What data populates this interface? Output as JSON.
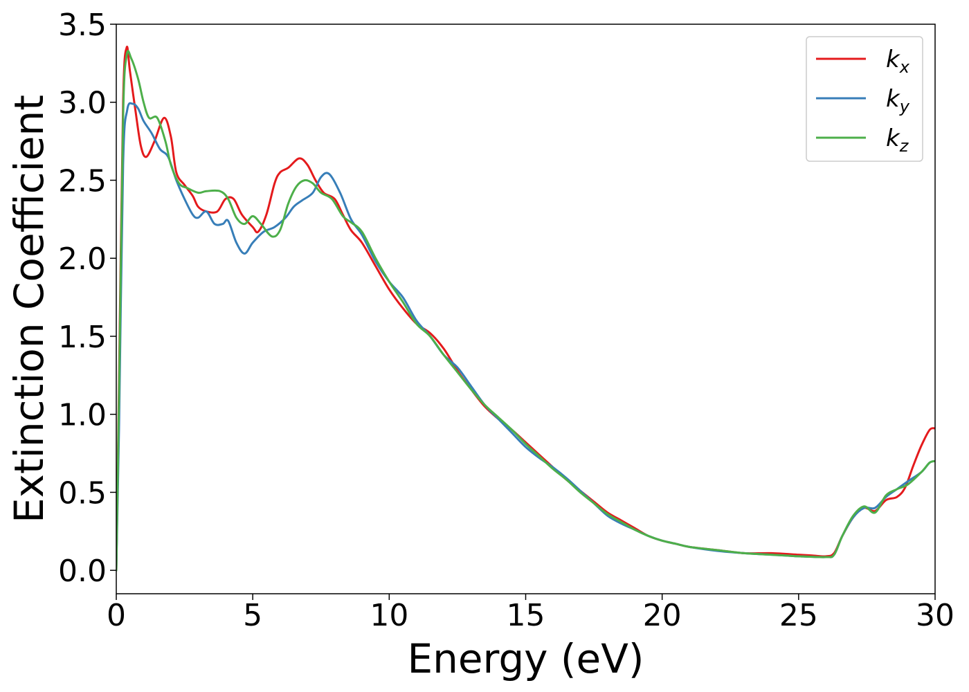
{
  "chart_data": {
    "type": "line",
    "title": "",
    "xlabel": "Energy (eV)",
    "ylabel": "Extinction Coefficient",
    "xlim": [
      0,
      30
    ],
    "ylim": [
      -0.15,
      3.5
    ],
    "xticks": [
      0,
      5,
      10,
      15,
      20,
      25,
      30
    ],
    "xtick_labels": [
      "0",
      "5",
      "10",
      "15",
      "20",
      "25",
      "30"
    ],
    "yticks": [
      0.0,
      0.5,
      1.0,
      1.5,
      2.0,
      2.5,
      3.0,
      3.5
    ],
    "ytick_labels": [
      "0.0",
      "0.5",
      "1.0",
      "1.5",
      "2.0",
      "2.5",
      "3.0",
      "3.5"
    ],
    "grid": false,
    "legend_position": "top-right",
    "series": [
      {
        "name": "k",
        "subscript": "x",
        "color": "#e41a1c",
        "points": [
          [
            0,
            0.0
          ],
          [
            0.1,
            1.2
          ],
          [
            0.25,
            3.0
          ],
          [
            0.38,
            3.35
          ],
          [
            0.5,
            3.2
          ],
          [
            0.7,
            2.95
          ],
          [
            0.9,
            2.72
          ],
          [
            1.1,
            2.65
          ],
          [
            1.4,
            2.75
          ],
          [
            1.75,
            2.9
          ],
          [
            2.0,
            2.78
          ],
          [
            2.2,
            2.55
          ],
          [
            2.5,
            2.47
          ],
          [
            2.8,
            2.4
          ],
          [
            3.0,
            2.33
          ],
          [
            3.3,
            2.3
          ],
          [
            3.7,
            2.3
          ],
          [
            4.0,
            2.38
          ],
          [
            4.3,
            2.38
          ],
          [
            4.6,
            2.28
          ],
          [
            5.0,
            2.2
          ],
          [
            5.2,
            2.17
          ],
          [
            5.5,
            2.28
          ],
          [
            5.8,
            2.48
          ],
          [
            6.0,
            2.55
          ],
          [
            6.3,
            2.58
          ],
          [
            6.7,
            2.64
          ],
          [
            7.0,
            2.6
          ],
          [
            7.3,
            2.5
          ],
          [
            7.6,
            2.42
          ],
          [
            8.0,
            2.38
          ],
          [
            8.3,
            2.28
          ],
          [
            8.6,
            2.18
          ],
          [
            9.0,
            2.1
          ],
          [
            9.5,
            1.95
          ],
          [
            10.0,
            1.8
          ],
          [
            10.5,
            1.68
          ],
          [
            11.0,
            1.58
          ],
          [
            11.5,
            1.52
          ],
          [
            12.0,
            1.42
          ],
          [
            12.5,
            1.28
          ],
          [
            13.0,
            1.16
          ],
          [
            13.5,
            1.05
          ],
          [
            14.0,
            0.97
          ],
          [
            14.5,
            0.9
          ],
          [
            15.0,
            0.82
          ],
          [
            15.5,
            0.74
          ],
          [
            16.0,
            0.66
          ],
          [
            16.5,
            0.58
          ],
          [
            17.0,
            0.51
          ],
          [
            17.5,
            0.44
          ],
          [
            18.0,
            0.37
          ],
          [
            18.5,
            0.32
          ],
          [
            19.0,
            0.27
          ],
          [
            19.5,
            0.22
          ],
          [
            20.0,
            0.19
          ],
          [
            20.5,
            0.17
          ],
          [
            21.0,
            0.15
          ],
          [
            22.0,
            0.13
          ],
          [
            23.0,
            0.11
          ],
          [
            24.0,
            0.11
          ],
          [
            25.0,
            0.1
          ],
          [
            25.5,
            0.095
          ],
          [
            26.0,
            0.09
          ],
          [
            26.3,
            0.11
          ],
          [
            26.6,
            0.22
          ],
          [
            27.0,
            0.34
          ],
          [
            27.4,
            0.4
          ],
          [
            27.8,
            0.38
          ],
          [
            28.2,
            0.45
          ],
          [
            28.6,
            0.47
          ],
          [
            28.9,
            0.53
          ],
          [
            29.2,
            0.67
          ],
          [
            29.5,
            0.8
          ],
          [
            29.8,
            0.9
          ],
          [
            30.0,
            0.91
          ]
        ]
      },
      {
        "name": "k",
        "subscript": "y",
        "color": "#377eb8",
        "points": [
          [
            0,
            0.0
          ],
          [
            0.1,
            0.9
          ],
          [
            0.25,
            2.6
          ],
          [
            0.4,
            2.95
          ],
          [
            0.6,
            2.99
          ],
          [
            0.8,
            2.96
          ],
          [
            1.0,
            2.88
          ],
          [
            1.3,
            2.8
          ],
          [
            1.6,
            2.7
          ],
          [
            1.9,
            2.65
          ],
          [
            2.2,
            2.5
          ],
          [
            2.5,
            2.38
          ],
          [
            2.8,
            2.28
          ],
          [
            3.0,
            2.26
          ],
          [
            3.3,
            2.3
          ],
          [
            3.6,
            2.22
          ],
          [
            3.9,
            2.22
          ],
          [
            4.1,
            2.24
          ],
          [
            4.4,
            2.1
          ],
          [
            4.7,
            2.03
          ],
          [
            5.0,
            2.1
          ],
          [
            5.4,
            2.17
          ],
          [
            5.8,
            2.2
          ],
          [
            6.2,
            2.26
          ],
          [
            6.5,
            2.33
          ],
          [
            6.8,
            2.37
          ],
          [
            7.2,
            2.42
          ],
          [
            7.5,
            2.52
          ],
          [
            7.8,
            2.54
          ],
          [
            8.2,
            2.42
          ],
          [
            8.6,
            2.25
          ],
          [
            9.0,
            2.15
          ],
          [
            9.5,
            1.98
          ],
          [
            10.0,
            1.85
          ],
          [
            10.5,
            1.75
          ],
          [
            11.0,
            1.6
          ],
          [
            11.5,
            1.5
          ],
          [
            12.0,
            1.38
          ],
          [
            12.5,
            1.3
          ],
          [
            13.0,
            1.18
          ],
          [
            13.5,
            1.06
          ],
          [
            14.0,
            0.97
          ],
          [
            14.5,
            0.88
          ],
          [
            15.0,
            0.79
          ],
          [
            15.5,
            0.72
          ],
          [
            16.0,
            0.66
          ],
          [
            16.5,
            0.59
          ],
          [
            17.0,
            0.51
          ],
          [
            17.5,
            0.43
          ],
          [
            18.0,
            0.35
          ],
          [
            18.5,
            0.3
          ],
          [
            19.0,
            0.26
          ],
          [
            19.5,
            0.22
          ],
          [
            20.0,
            0.19
          ],
          [
            20.5,
            0.17
          ],
          [
            21.0,
            0.15
          ],
          [
            22.0,
            0.125
          ],
          [
            23.0,
            0.11
          ],
          [
            24.0,
            0.1
          ],
          [
            25.0,
            0.09
          ],
          [
            26.0,
            0.085
          ],
          [
            26.3,
            0.1
          ],
          [
            26.6,
            0.22
          ],
          [
            27.0,
            0.34
          ],
          [
            27.4,
            0.4
          ],
          [
            27.8,
            0.4
          ],
          [
            28.2,
            0.47
          ],
          [
            28.6,
            0.52
          ],
          [
            29.0,
            0.57
          ],
          [
            29.5,
            0.63
          ],
          [
            29.8,
            0.69
          ],
          [
            30.0,
            0.7
          ]
        ]
      },
      {
        "name": "k",
        "subscript": "z",
        "color": "#4daf4a",
        "points": [
          [
            0,
            0.0
          ],
          [
            0.1,
            1.1
          ],
          [
            0.25,
            2.9
          ],
          [
            0.38,
            3.3
          ],
          [
            0.55,
            3.28
          ],
          [
            0.8,
            3.15
          ],
          [
            1.0,
            3.0
          ],
          [
            1.2,
            2.9
          ],
          [
            1.5,
            2.9
          ],
          [
            1.8,
            2.75
          ],
          [
            2.0,
            2.6
          ],
          [
            2.3,
            2.48
          ],
          [
            2.6,
            2.45
          ],
          [
            3.0,
            2.42
          ],
          [
            3.3,
            2.43
          ],
          [
            3.8,
            2.43
          ],
          [
            4.1,
            2.38
          ],
          [
            4.4,
            2.26
          ],
          [
            4.7,
            2.22
          ],
          [
            5.0,
            2.27
          ],
          [
            5.3,
            2.22
          ],
          [
            5.7,
            2.14
          ],
          [
            6.0,
            2.18
          ],
          [
            6.3,
            2.35
          ],
          [
            6.6,
            2.46
          ],
          [
            6.9,
            2.5
          ],
          [
            7.2,
            2.48
          ],
          [
            7.5,
            2.42
          ],
          [
            7.9,
            2.38
          ],
          [
            8.3,
            2.27
          ],
          [
            8.6,
            2.23
          ],
          [
            9.0,
            2.17
          ],
          [
            9.5,
            2.0
          ],
          [
            10.0,
            1.85
          ],
          [
            10.5,
            1.72
          ],
          [
            11.0,
            1.58
          ],
          [
            11.5,
            1.5
          ],
          [
            12.0,
            1.38
          ],
          [
            12.5,
            1.27
          ],
          [
            13.0,
            1.16
          ],
          [
            13.5,
            1.06
          ],
          [
            14.0,
            0.98
          ],
          [
            14.5,
            0.9
          ],
          [
            15.0,
            0.81
          ],
          [
            15.5,
            0.73
          ],
          [
            16.0,
            0.65
          ],
          [
            16.5,
            0.58
          ],
          [
            17.0,
            0.5
          ],
          [
            17.5,
            0.43
          ],
          [
            18.0,
            0.36
          ],
          [
            18.5,
            0.31
          ],
          [
            19.0,
            0.26
          ],
          [
            19.5,
            0.22
          ],
          [
            20.0,
            0.19
          ],
          [
            20.5,
            0.17
          ],
          [
            21.0,
            0.15
          ],
          [
            22.0,
            0.13
          ],
          [
            23.0,
            0.11
          ],
          [
            24.0,
            0.1
          ],
          [
            25.0,
            0.09
          ],
          [
            26.0,
            0.085
          ],
          [
            26.3,
            0.1
          ],
          [
            26.6,
            0.22
          ],
          [
            27.0,
            0.35
          ],
          [
            27.4,
            0.41
          ],
          [
            27.8,
            0.37
          ],
          [
            28.2,
            0.48
          ],
          [
            28.6,
            0.52
          ],
          [
            29.0,
            0.55
          ],
          [
            29.5,
            0.63
          ],
          [
            29.8,
            0.69
          ],
          [
            30.0,
            0.7
          ]
        ]
      }
    ]
  }
}
